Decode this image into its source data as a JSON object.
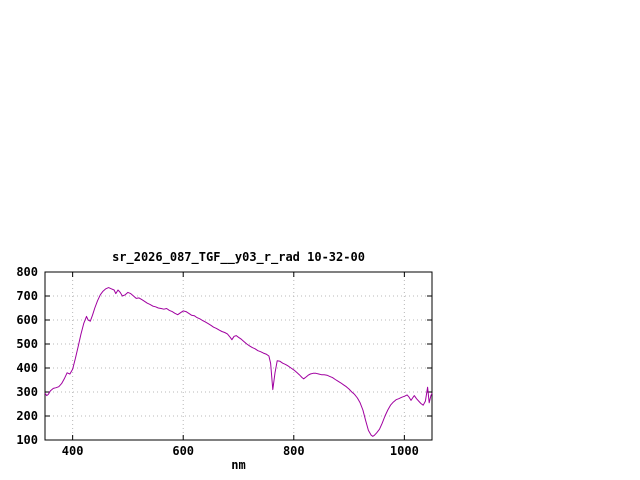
{
  "window": {
    "background": "#ffffff"
  },
  "chart_data": {
    "type": "line",
    "title": "sr_2026_087_TGF__y03_r_rad 10-32-00",
    "xlabel": "nm",
    "ylabel": "",
    "xlim": [
      350,
      1050
    ],
    "ylim": [
      100,
      800
    ],
    "xticks": [
      400,
      600,
      800,
      1000
    ],
    "yticks": [
      100,
      200,
      300,
      400,
      500,
      600,
      700,
      800
    ],
    "grid": true,
    "grid_color": "#b8b8b8",
    "border_color": "#000000",
    "line_color": "#a000a0",
    "legend": "none",
    "series": [
      {
        "name": "sr_2026_087_TGF__y03_r_rad",
        "points": [
          [
            350,
            295
          ],
          [
            353,
            285
          ],
          [
            356,
            290
          ],
          [
            360,
            305
          ],
          [
            365,
            315
          ],
          [
            370,
            318
          ],
          [
            375,
            322
          ],
          [
            380,
            335
          ],
          [
            385,
            355
          ],
          [
            390,
            380
          ],
          [
            395,
            375
          ],
          [
            400,
            395
          ],
          [
            405,
            440
          ],
          [
            410,
            490
          ],
          [
            415,
            540
          ],
          [
            420,
            585
          ],
          [
            425,
            615
          ],
          [
            428,
            600
          ],
          [
            432,
            595
          ],
          [
            436,
            620
          ],
          [
            440,
            650
          ],
          [
            445,
            680
          ],
          [
            450,
            705
          ],
          [
            455,
            720
          ],
          [
            460,
            730
          ],
          [
            465,
            735
          ],
          [
            470,
            730
          ],
          [
            475,
            725
          ],
          [
            478,
            710
          ],
          [
            482,
            725
          ],
          [
            486,
            715
          ],
          [
            490,
            700
          ],
          [
            495,
            705
          ],
          [
            500,
            715
          ],
          [
            505,
            710
          ],
          [
            510,
            700
          ],
          [
            515,
            690
          ],
          [
            520,
            692
          ],
          [
            525,
            685
          ],
          [
            530,
            678
          ],
          [
            535,
            670
          ],
          [
            540,
            665
          ],
          [
            545,
            658
          ],
          [
            550,
            655
          ],
          [
            555,
            650
          ],
          [
            560,
            648
          ],
          [
            565,
            645
          ],
          [
            570,
            648
          ],
          [
            575,
            640
          ],
          [
            580,
            635
          ],
          [
            585,
            628
          ],
          [
            590,
            622
          ],
          [
            595,
            630
          ],
          [
            600,
            638
          ],
          [
            605,
            635
          ],
          [
            610,
            628
          ],
          [
            615,
            620
          ],
          [
            620,
            618
          ],
          [
            625,
            610
          ],
          [
            630,
            605
          ],
          [
            635,
            598
          ],
          [
            640,
            592
          ],
          [
            645,
            585
          ],
          [
            650,
            578
          ],
          [
            655,
            570
          ],
          [
            660,
            565
          ],
          [
            665,
            558
          ],
          [
            670,
            552
          ],
          [
            675,
            548
          ],
          [
            680,
            542
          ],
          [
            685,
            528
          ],
          [
            688,
            518
          ],
          [
            692,
            532
          ],
          [
            696,
            535
          ],
          [
            700,
            528
          ],
          [
            705,
            520
          ],
          [
            710,
            510
          ],
          [
            715,
            500
          ],
          [
            720,
            492
          ],
          [
            725,
            485
          ],
          [
            730,
            480
          ],
          [
            735,
            472
          ],
          [
            740,
            468
          ],
          [
            745,
            462
          ],
          [
            750,
            458
          ],
          [
            755,
            450
          ],
          [
            758,
            420
          ],
          [
            762,
            310
          ],
          [
            766,
            380
          ],
          [
            770,
            430
          ],
          [
            775,
            428
          ],
          [
            780,
            420
          ],
          [
            785,
            415
          ],
          [
            790,
            408
          ],
          [
            795,
            400
          ],
          [
            800,
            392
          ],
          [
            805,
            382
          ],
          [
            810,
            372
          ],
          [
            815,
            360
          ],
          [
            818,
            355
          ],
          [
            822,
            362
          ],
          [
            826,
            370
          ],
          [
            830,
            375
          ],
          [
            835,
            378
          ],
          [
            840,
            378
          ],
          [
            845,
            375
          ],
          [
            850,
            372
          ],
          [
            855,
            372
          ],
          [
            860,
            370
          ],
          [
            865,
            365
          ],
          [
            870,
            360
          ],
          [
            875,
            352
          ],
          [
            880,
            345
          ],
          [
            885,
            338
          ],
          [
            890,
            330
          ],
          [
            895,
            322
          ],
          [
            900,
            312
          ],
          [
            905,
            300
          ],
          [
            910,
            290
          ],
          [
            915,
            275
          ],
          [
            920,
            255
          ],
          [
            925,
            225
          ],
          [
            930,
            180
          ],
          [
            935,
            140
          ],
          [
            940,
            120
          ],
          [
            943,
            115
          ],
          [
            946,
            120
          ],
          [
            950,
            130
          ],
          [
            955,
            145
          ],
          [
            960,
            170
          ],
          [
            965,
            200
          ],
          [
            970,
            225
          ],
          [
            975,
            245
          ],
          [
            980,
            258
          ],
          [
            985,
            268
          ],
          [
            990,
            272
          ],
          [
            995,
            278
          ],
          [
            1000,
            282
          ],
          [
            1005,
            288
          ],
          [
            1008,
            280
          ],
          [
            1012,
            265
          ],
          [
            1015,
            275
          ],
          [
            1018,
            285
          ],
          [
            1022,
            272
          ],
          [
            1026,
            262
          ],
          [
            1030,
            252
          ],
          [
            1034,
            245
          ],
          [
            1038,
            262
          ],
          [
            1042,
            320
          ],
          [
            1045,
            255
          ],
          [
            1048,
            285
          ],
          [
            1050,
            295
          ]
        ]
      }
    ]
  }
}
